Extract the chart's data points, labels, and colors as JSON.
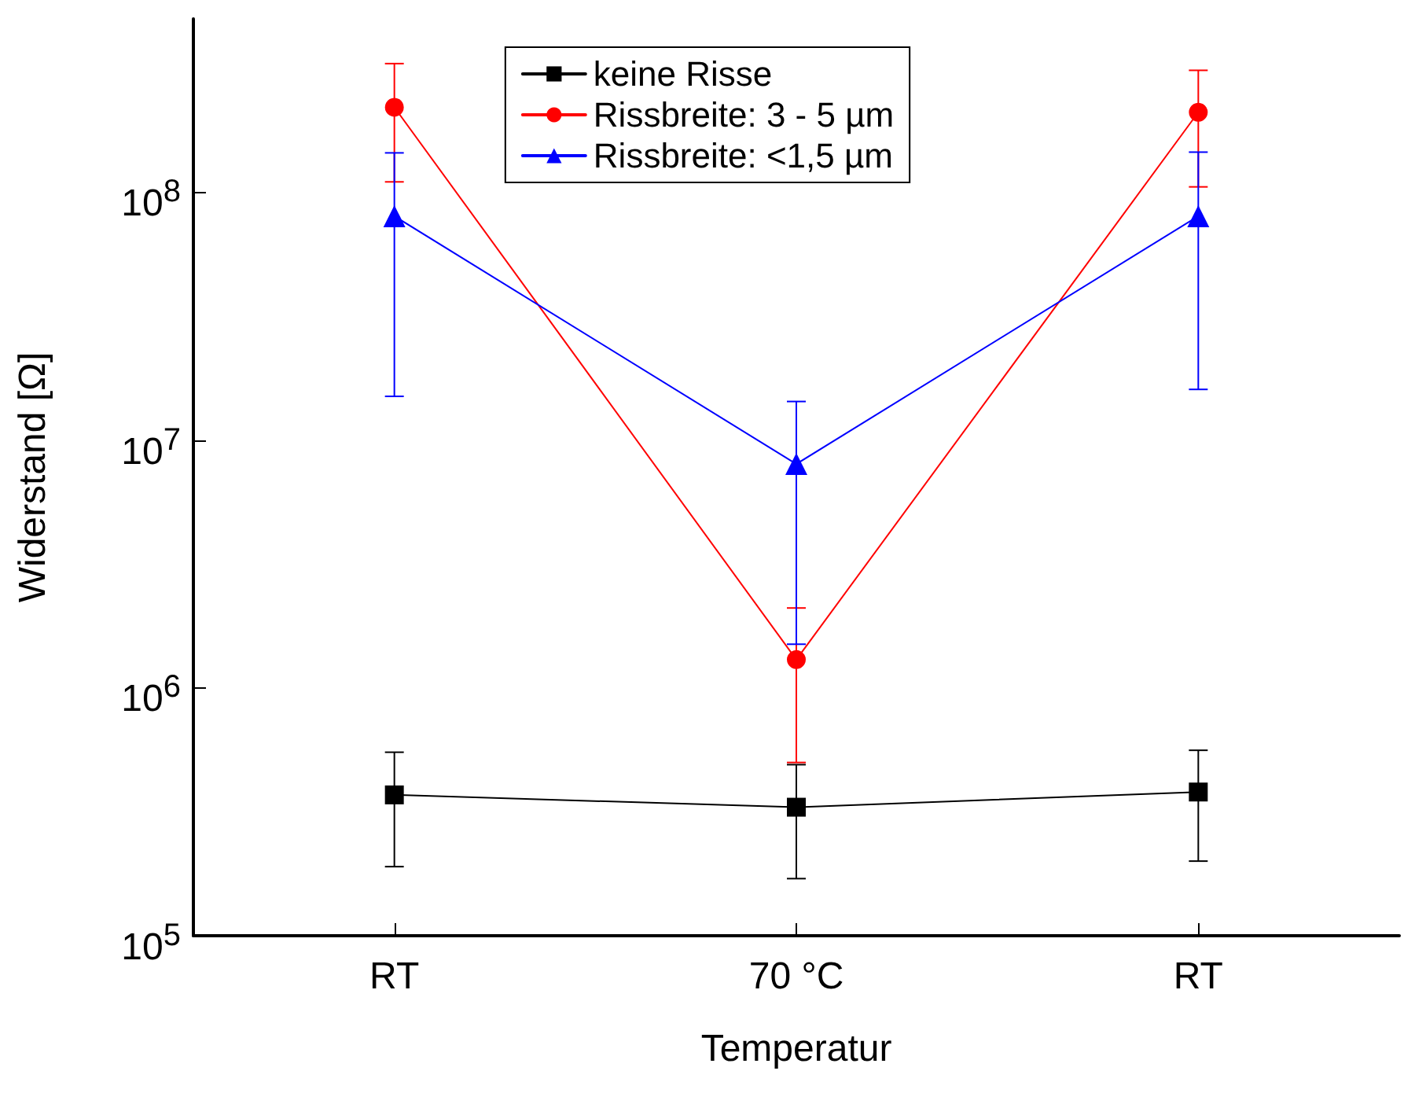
{
  "chart_data": {
    "type": "line",
    "xlabel": "Temperatur",
    "ylabel": "Widerstand [Ω]",
    "categories": [
      "RT",
      "70 °C",
      "RT"
    ],
    "log": "y",
    "ylim": [
      100000,
      500000000
    ],
    "yticks": [
      {
        "value": 100000,
        "label": "10$^{5}$"
      },
      {
        "value": 1000000,
        "label": "10$^{6}$"
      },
      {
        "value": 10000000,
        "label": "10$^{7}$"
      },
      {
        "value": 100000000,
        "label": "10$^{8}$"
      }
    ],
    "grid": false,
    "legend": "top",
    "line_style": "solid",
    "series": [
      {
        "name": "keine Risse",
        "color": "#000000",
        "marker": "square",
        "values": [
          370000,
          330000,
          380000
        ],
        "errors": [
          [
            190000,
            550000
          ],
          [
            170000,
            490000
          ],
          [
            200000,
            560000
          ]
        ]
      },
      {
        "name": "Rissbreite: 3 - 5 µm",
        "color": "#ff0000",
        "marker": "circle",
        "values": [
          220000000,
          1300000,
          210000000
        ],
        "errors": [
          [
            110000000,
            330000000
          ],
          [
            500000,
            2100000
          ],
          [
            105000000,
            310000000
          ]
        ]
      },
      {
        "name": "Rissbreite: <1,5 µm",
        "color": "#0000ff",
        "marker": "triangle",
        "values": [
          80000000,
          8000000,
          80000000
        ],
        "errors": [
          [
            15000000,
            144000000
          ],
          [
            1500000,
            14300000
          ],
          [
            16000000,
            145000000
          ]
        ]
      }
    ]
  }
}
